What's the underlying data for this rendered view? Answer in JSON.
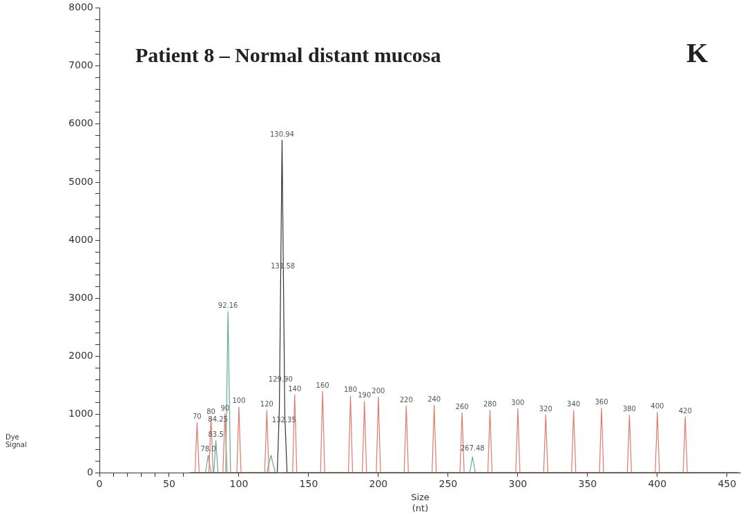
{
  "chart_data": {
    "type": "line",
    "title": "Patient 8 – Normal distant mucosa",
    "xlabel": "Size (nt)",
    "xlim": [
      0,
      460
    ],
    "ylim": [
      0,
      8000
    ],
    "xticks": [
      0,
      {
        "value": 10,
        "label": null
      },
      {
        "value": 20,
        "label": null
      },
      {
        "value": 30,
        "label": null
      },
      {
        "value": 40,
        "label": null
      },
      50,
      {
        "value": 60,
        "label": null
      },
      100,
      150,
      200,
      250,
      300,
      350,
      400,
      450
    ],
    "yticks": [
      0,
      {
        "value": 200,
        "label": null
      },
      {
        "value": 400,
        "label": null
      },
      {
        "value": 600,
        "label": null
      },
      {
        "value": 800,
        "label": null
      },
      1000,
      {
        "value": 1200,
        "label": null
      },
      {
        "value": 1400,
        "label": null
      },
      {
        "value": 1600,
        "label": null
      },
      {
        "value": 1800,
        "label": null
      },
      2000,
      {
        "value": 2200,
        "label": null
      },
      {
        "value": 2400,
        "label": null
      },
      {
        "value": 2600,
        "label": null
      },
      {
        "value": 2800,
        "label": null
      },
      3000,
      {
        "value": 3200,
        "label": null
      },
      {
        "value": 3400,
        "label": null
      },
      {
        "value": 3600,
        "label": null
      },
      {
        "value": 3800,
        "label": null
      },
      4000,
      {
        "value": 4200,
        "label": null
      },
      {
        "value": 4400,
        "label": null
      },
      {
        "value": 4600,
        "label": null
      },
      {
        "value": 4800,
        "label": null
      },
      5000,
      {
        "value": 5200,
        "label": null
      },
      {
        "value": 5400,
        "label": null
      },
      {
        "value": 5600,
        "label": null
      },
      {
        "value": 5800,
        "label": null
      },
      6000,
      {
        "value": 6200,
        "label": null
      },
      {
        "value": 6400,
        "label": null
      },
      {
        "value": 6600,
        "label": null
      },
      {
        "value": 6800,
        "label": null
      },
      7000,
      {
        "value": 7200,
        "label": null
      },
      {
        "value": 7400,
        "label": null
      },
      {
        "value": 7600,
        "label": null
      },
      {
        "value": 7800,
        "label": null
      },
      8000
    ],
    "grid": false,
    "legend": false,
    "marker": "none",
    "series": [
      {
        "color": "#e07a6a",
        "x": [
          68.5,
          70,
          71.5,
          78.5,
          80,
          81.5,
          88.5,
          90,
          91.5,
          98.5,
          100,
          101.5,
          118.5,
          120,
          121.5,
          138.5,
          140,
          141.5,
          158.5,
          160,
          161.5,
          178.5,
          180,
          181.5,
          188.5,
          190,
          191.5,
          198.5,
          200,
          201.5,
          218.5,
          220,
          221.5,
          238.5,
          240,
          241.5,
          258.5,
          260,
          261.5,
          278.5,
          280,
          281.5,
          298.5,
          300,
          301.5,
          318.5,
          320,
          321.5,
          338.5,
          340,
          341.5,
          358.5,
          360,
          361.5,
          378.5,
          380,
          381.5,
          398.5,
          400,
          401.5,
          418.5,
          420,
          421.5
        ],
        "values": [
          0,
          860,
          0,
          0,
          950,
          0,
          0,
          1010,
          0,
          0,
          1130,
          0,
          0,
          1070,
          0,
          0,
          1340,
          0,
          0,
          1400,
          0,
          0,
          1320,
          0,
          0,
          1230,
          0,
          0,
          1300,
          0,
          0,
          1150,
          0,
          0,
          1160,
          0,
          0,
          1030,
          0,
          0,
          1070,
          0,
          0,
          1100,
          0,
          0,
          990,
          0,
          0,
          1070,
          0,
          0,
          1110,
          0,
          0,
          990,
          0,
          0,
          1040,
          0,
          0,
          960,
          0
        ]
      },
      {
        "color": "#5fae8f",
        "x": [
          76,
          78,
          80,
          82,
          83.5,
          85,
          90.5,
          92.16,
          94,
          120,
          123,
          126,
          265.5,
          267.48,
          269.5
        ],
        "values": [
          0,
          300,
          0,
          0,
          550,
          0,
          0,
          2770,
          0,
          0,
          300,
          0,
          0,
          270,
          0
        ]
      },
      {
        "color": "#333333",
        "x": [
          65,
          127.5,
          129,
          130.94,
          132.9,
          134.5,
          458
        ],
        "values": [
          0,
          0,
          1100,
          5720,
          1000,
          0,
          0
        ]
      }
    ],
    "annotations": [
      "K",
      "Dye Signal",
      {
        "text": "70",
        "x": 70,
        "y": 860
      },
      {
        "text": "80",
        "x": 80,
        "y": 950
      },
      {
        "text": "90",
        "x": 90,
        "y": 1010
      },
      {
        "text": "100",
        "x": 100,
        "y": 1130
      },
      {
        "text": "120",
        "x": 120,
        "y": 1070
      },
      {
        "text": "140",
        "x": 140,
        "y": 1340
      },
      {
        "text": "160",
        "x": 160,
        "y": 1400
      },
      {
        "text": "180",
        "x": 180,
        "y": 1320
      },
      {
        "text": "190",
        "x": 190,
        "y": 1230
      },
      {
        "text": "200",
        "x": 200,
        "y": 1300
      },
      {
        "text": "220",
        "x": 220,
        "y": 1150
      },
      {
        "text": "240",
        "x": 240,
        "y": 1160
      },
      {
        "text": "260",
        "x": 260,
        "y": 1030
      },
      {
        "text": "280",
        "x": 280,
        "y": 1070
      },
      {
        "text": "300",
        "x": 300,
        "y": 1100
      },
      {
        "text": "320",
        "x": 320,
        "y": 990
      },
      {
        "text": "340",
        "x": 340,
        "y": 1070
      },
      {
        "text": "360",
        "x": 360,
        "y": 1110
      },
      {
        "text": "380",
        "x": 380,
        "y": 990
      },
      {
        "text": "400",
        "x": 400,
        "y": 1040
      },
      {
        "text": "420",
        "x": 420,
        "y": 960
      },
      {
        "text": "92.16",
        "x": 92.16,
        "y": 2770
      },
      {
        "text": "130.94",
        "x": 130.94,
        "y": 5720
      },
      {
        "text": "131.58",
        "x": 131.58,
        "y": 3450
      },
      {
        "text": "129.90",
        "x": 129.9,
        "y": 1500
      },
      {
        "text": "132.35",
        "x": 132.35,
        "y": 800
      },
      "84.25",
      {
        "text": "83.5",
        "x": 83.5,
        "y": 550
      },
      {
        "text": "78.0",
        "x": 78,
        "y": 300
      },
      {
        "text": "267.48",
        "x": 267.48,
        "y": 320
      }
    ]
  }
}
